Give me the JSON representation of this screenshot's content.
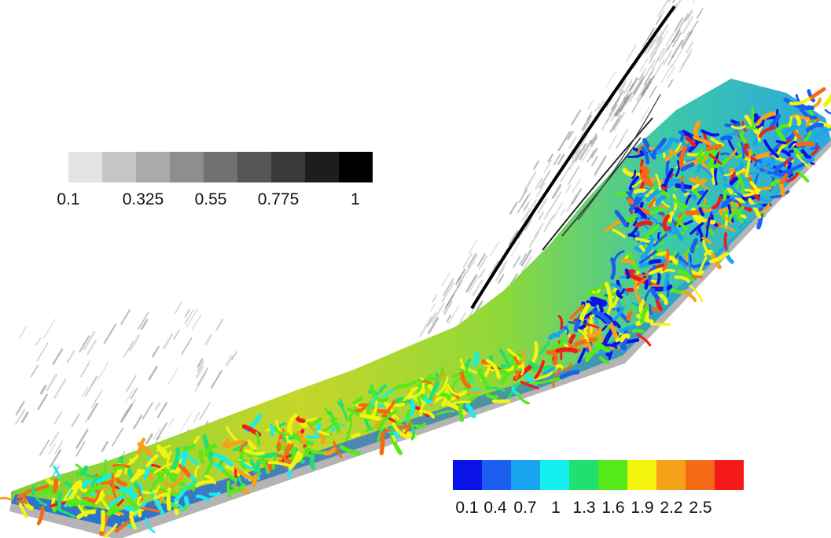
{
  "density_legend": {
    "colors": [
      "#e3e3e3",
      "#c6c6c6",
      "#aaaaaa",
      "#8e8e8e",
      "#717171",
      "#555555",
      "#393939",
      "#1d1d1d",
      "#000000"
    ],
    "tick_values": [
      0.1,
      0.325,
      0.55,
      0.775,
      1
    ],
    "tick_labels": [
      "0.1",
      "0.325",
      "0.55",
      "0.775",
      "1"
    ]
  },
  "mach_legend": {
    "colors": [
      "#0a14e6",
      "#1a5fef",
      "#1aa3ef",
      "#14eeee",
      "#22e070",
      "#55e81a",
      "#f4f40e",
      "#f5a21a",
      "#f56a14",
      "#f51a1a"
    ],
    "tick_values": [
      0.1,
      0.4,
      0.7,
      1,
      1.3,
      1.6,
      1.9,
      2.2,
      2.5
    ],
    "tick_labels": [
      "0.1",
      "0.4",
      "0.7",
      "1",
      "1.3",
      "1.6",
      "1.9",
      "2.2",
      "2.5"
    ]
  },
  "scene": {
    "background_color": "#ffffff",
    "wall_color": "#b4b4b4",
    "shock_color": "#000000"
  }
}
